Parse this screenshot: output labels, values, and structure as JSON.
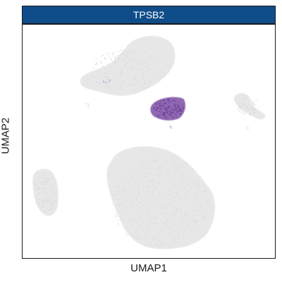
{
  "chart_data": {
    "type": "scatter",
    "subtype": "umap-feature-plot",
    "facet_title": "TPSB2",
    "xlabel": "UMAP1",
    "ylabel": "UMAP2",
    "grid": false,
    "legend": "none",
    "axis_ticks": "none",
    "colors": {
      "background_cells": "#e4e4e4",
      "expressing_cells": "#7b4fa3",
      "facet_strip": "#0f4c8a",
      "facet_text": "#ffffff"
    },
    "clusters": [
      {
        "name": "upper-left",
        "expression": "low"
      },
      {
        "name": "center-small",
        "expression": "high"
      },
      {
        "name": "right-small",
        "expression": "none"
      },
      {
        "name": "lower-large",
        "expression": "none"
      },
      {
        "name": "left-small",
        "expression": "none"
      }
    ]
  }
}
